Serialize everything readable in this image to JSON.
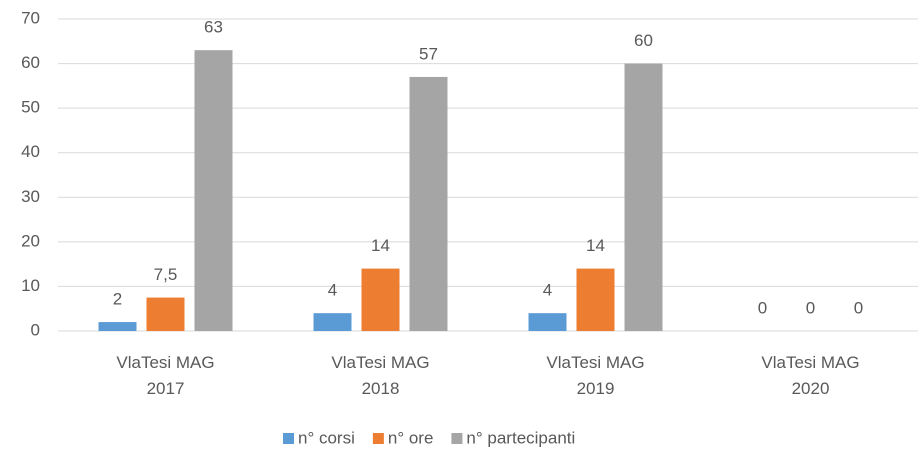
{
  "chart_data": {
    "type": "bar",
    "categories": [
      "VlaTesi MAG 2017",
      "VlaTesi MAG 2018",
      "VlaTesi MAG 2019",
      "VlaTesi MAG 2020"
    ],
    "series": [
      {
        "name": "n° corsi",
        "color": "#5b9bd5",
        "values": [
          2,
          4,
          4,
          0
        ]
      },
      {
        "name": "n° ore",
        "color": "#ed7d31",
        "values": [
          7.5,
          14,
          14,
          0
        ],
        "value_labels": [
          "7,5",
          "14",
          "14",
          "0"
        ]
      },
      {
        "name": "n° partecipanti",
        "color": "#a5a5a5",
        "values": [
          63,
          57,
          60,
          0
        ]
      }
    ],
    "ylim": [
      0,
      70
    ],
    "yticks": [
      0,
      10,
      20,
      30,
      40,
      50,
      60,
      70
    ],
    "grid": true,
    "legend": "bottom"
  }
}
